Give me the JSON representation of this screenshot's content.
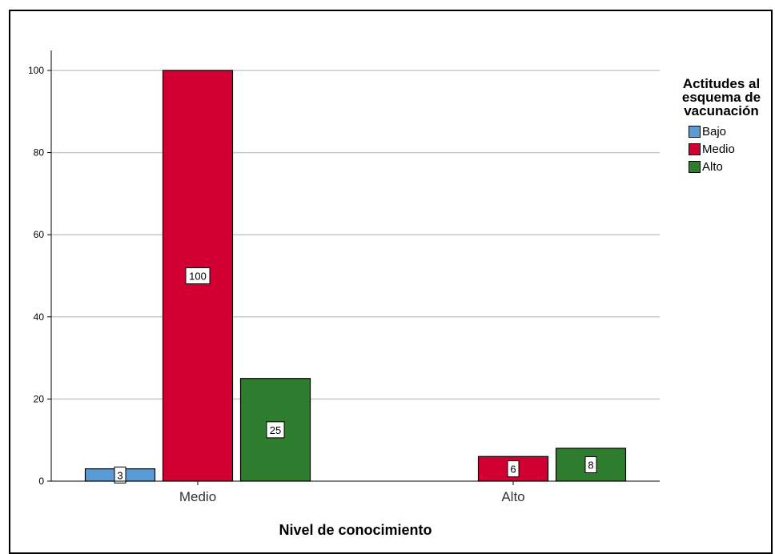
{
  "chart_data": {
    "type": "bar",
    "title": "",
    "xlabel": "Nivel de conocimiento",
    "ylabel": "",
    "categories": [
      "Medio",
      "Alto"
    ],
    "series": [
      {
        "name": "Bajo",
        "values": [
          3,
          0
        ],
        "color": "#5b9bd5"
      },
      {
        "name": "Medio",
        "values": [
          100,
          6
        ],
        "color": "#d20032"
      },
      {
        "name": "Alto",
        "values": [
          25,
          8
        ],
        "color": "#2e7d2e"
      }
    ],
    "data_labels": [
      [
        3,
        null
      ],
      [
        100,
        6
      ],
      [
        25,
        8
      ]
    ],
    "ylim": [
      0,
      105
    ],
    "yticks": [
      0,
      20,
      40,
      60,
      80,
      100
    ],
    "grid": true,
    "legend": {
      "title": "Actitudes al esquema de vacunación",
      "title_lines": [
        "Actitudes al",
        "esquema de",
        "vacunación"
      ],
      "position": "right"
    }
  }
}
